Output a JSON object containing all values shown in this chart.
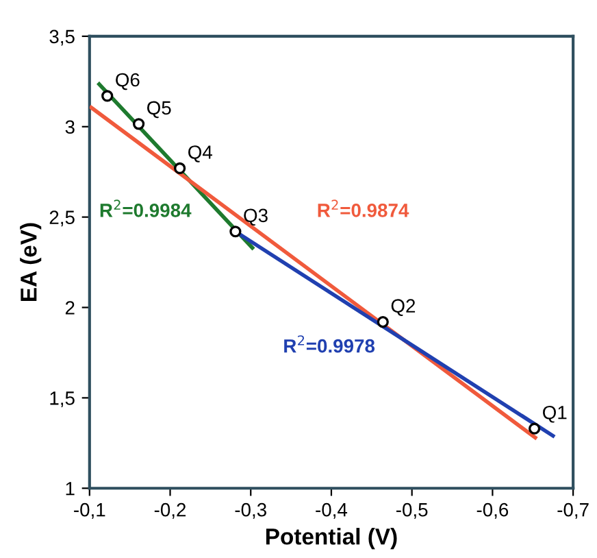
{
  "chart_data": {
    "type": "scatter",
    "xlabel": "Potential (V)",
    "ylabel": "EA (eV)",
    "xlim": [
      -0.1,
      -0.7
    ],
    "ylim": [
      1,
      3.5
    ],
    "xticks": [
      {
        "value": -0.1,
        "label": "-0,1"
      },
      {
        "value": -0.2,
        "label": "-0,2"
      },
      {
        "value": -0.3,
        "label": "-0,3"
      },
      {
        "value": -0.4,
        "label": "-0,4"
      },
      {
        "value": -0.5,
        "label": "-0,5"
      },
      {
        "value": -0.6,
        "label": "-0,6"
      },
      {
        "value": -0.7,
        "label": "-0,7"
      }
    ],
    "yticks": [
      1,
      {
        "value": 1.5,
        "label": "1,5"
      },
      2,
      {
        "value": 2.5,
        "label": "2,5"
      },
      3,
      {
        "value": 3.5,
        "label": "3,5"
      }
    ],
    "grid": false,
    "series": [
      {
        "marker": "circle",
        "color": "#000000",
        "x": [
          -0.652,
          -0.464,
          -0.281,
          -0.212,
          -0.161,
          -0.122
        ],
        "values": [
          1.33,
          1.92,
          2.42,
          2.77,
          3.015,
          3.17
        ]
      },
      {
        "type": "line",
        "color": "#1e7a2e",
        "x": [
          -0.112,
          -0.302
        ],
        "values": [
          3.235,
          2.33
        ]
      },
      {
        "type": "line",
        "color": "#f05a3c",
        "x": [
          -0.102,
          -0.653
        ],
        "values": [
          3.106,
          1.28
        ]
      },
      {
        "type": "line",
        "color": "#2040b0",
        "x": [
          -0.288,
          -0.675
        ],
        "values": [
          2.4,
          1.29
        ]
      }
    ],
    "annotations": [
      {
        "text": "Q1",
        "x": -0.652,
        "y": 1.33
      },
      {
        "text": "Q2",
        "x": -0.464,
        "y": 1.92
      },
      {
        "text": "Q3",
        "x": -0.281,
        "y": 2.42
      },
      {
        "text": "Q4",
        "x": -0.212,
        "y": 2.77
      },
      {
        "text": "Q5",
        "x": -0.161,
        "y": 3.015
      },
      {
        "text": "Q6",
        "x": -0.122,
        "y": 3.17
      },
      "R$^{2}$=0.9984",
      "R$^{2}$=0.9874",
      "R$^{2}$=0.9978"
    ]
  }
}
